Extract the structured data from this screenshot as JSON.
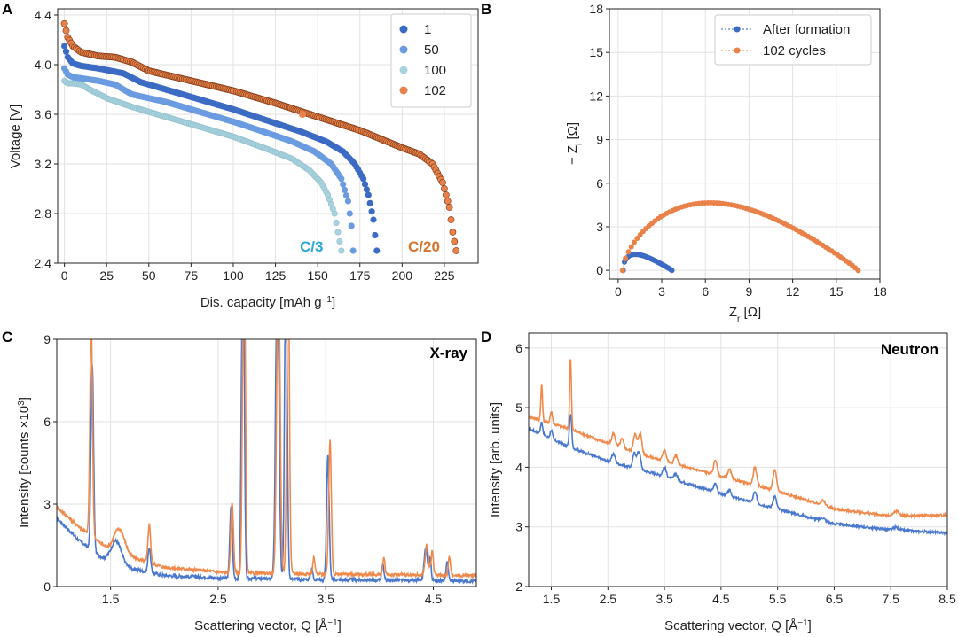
{
  "colors": {
    "c1": "#3c6bc4",
    "c50": "#6b9be0",
    "c100": "#a9d3de",
    "c102": "#e8824a",
    "dark": "#7a3512",
    "blue_line": "#4a78cf",
    "orange_line": "#ef8a4c",
    "c3_label": "#2aa7d6",
    "c20_label": "#d5742f"
  },
  "chart_data": [
    {
      "id": "A",
      "type": "scatter",
      "panel_label": "A",
      "xlabel": "Dis. capacity [mAh g",
      "xlabel_sup": "−1",
      "xlabel_end": "]",
      "ylabel": "Voltage [V]",
      "xlim": [
        -4,
        245
      ],
      "ylim": [
        2.4,
        4.45
      ],
      "xticks": [
        0,
        25,
        50,
        75,
        100,
        125,
        150,
        175,
        200,
        225
      ],
      "xtick_labels": [
        "0",
        "25",
        "50",
        "75",
        "100",
        "125",
        "150",
        "175",
        "200",
        "225"
      ],
      "yticks": [
        2.4,
        2.8,
        3.2,
        3.6,
        4.0,
        4.4
      ],
      "ytick_labels": [
        "2.4",
        "2.8",
        "3.2",
        "3.6",
        "4.0",
        "4.4"
      ],
      "legend": {
        "placement": "top-right",
        "entries": [
          "1",
          "50",
          "100",
          "102"
        ]
      },
      "annotations": [
        "C/3",
        "C/20"
      ],
      "series": [
        {
          "name": "1",
          "color_key": "c1",
          "points": [
            [
              0,
              4.15
            ],
            [
              2,
              4.06
            ],
            [
              5,
              4.01
            ],
            [
              10,
              3.99
            ],
            [
              20,
              3.97
            ],
            [
              35,
              3.93
            ],
            [
              45,
              3.86
            ],
            [
              60,
              3.8
            ],
            [
              80,
              3.72
            ],
            [
              100,
              3.64
            ],
            [
              120,
              3.55
            ],
            [
              140,
              3.46
            ],
            [
              155,
              3.38
            ],
            [
              165,
              3.3
            ],
            [
              172,
              3.2
            ],
            [
              177,
              3.08
            ],
            [
              180,
              2.95
            ],
            [
              183,
              2.75
            ],
            [
              185,
              2.5
            ]
          ]
        },
        {
          "name": "50",
          "color_key": "c50",
          "points": [
            [
              0,
              3.97
            ],
            [
              2,
              3.92
            ],
            [
              5,
              3.9
            ],
            [
              10,
              3.89
            ],
            [
              20,
              3.87
            ],
            [
              30,
              3.84
            ],
            [
              40,
              3.76
            ],
            [
              60,
              3.7
            ],
            [
              80,
              3.62
            ],
            [
              100,
              3.54
            ],
            [
              120,
              3.45
            ],
            [
              135,
              3.38
            ],
            [
              148,
              3.3
            ],
            [
              158,
              3.2
            ],
            [
              164,
              3.08
            ],
            [
              168,
              2.9
            ],
            [
              170,
              2.7
            ],
            [
              171,
              2.5
            ]
          ]
        },
        {
          "name": "100",
          "color_key": "c100",
          "points": [
            [
              0,
              3.87
            ],
            [
              2,
              3.85
            ],
            [
              5,
              3.85
            ],
            [
              10,
              3.84
            ],
            [
              15,
              3.8
            ],
            [
              25,
              3.73
            ],
            [
              40,
              3.66
            ],
            [
              60,
              3.58
            ],
            [
              80,
              3.5
            ],
            [
              100,
              3.42
            ],
            [
              120,
              3.32
            ],
            [
              135,
              3.24
            ],
            [
              145,
              3.15
            ],
            [
              152,
              3.05
            ],
            [
              156,
              2.95
            ],
            [
              160,
              2.8
            ],
            [
              162,
              2.65
            ],
            [
              164,
              2.5
            ]
          ]
        },
        {
          "name": "102",
          "color_key": "c102",
          "points": [
            [
              0,
              4.33
            ],
            [
              2,
              4.22
            ],
            [
              5,
              4.15
            ],
            [
              10,
              4.1
            ],
            [
              20,
              4.07
            ],
            [
              30,
              4.06
            ],
            [
              40,
              4.02
            ],
            [
              50,
              3.95
            ],
            [
              75,
              3.87
            ],
            [
              100,
              3.79
            ],
            [
              125,
              3.69
            ],
            [
              150,
              3.58
            ],
            [
              175,
              3.47
            ],
            [
              200,
              3.33
            ],
            [
              210,
              3.28
            ],
            [
              218,
              3.2
            ],
            [
              224,
              3.05
            ],
            [
              228,
              2.85
            ],
            [
              230,
              2.65
            ],
            [
              232,
              2.5
            ]
          ]
        }
      ],
      "extra_points": [
        [
          141,
          3.6
        ]
      ]
    },
    {
      "id": "B",
      "type": "scatter",
      "panel_label": "B",
      "xlabel": "Z",
      "xlabel_sub": "r",
      "xlabel_end": " [Ω]",
      "ylabel": "− Z",
      "ylabel_sub": "i",
      "ylabel_end": " [Ω]",
      "xlim": [
        -0.6,
        18
      ],
      "ylim": [
        -0.6,
        18
      ],
      "xticks": [
        0,
        3,
        6,
        9,
        12,
        15,
        18
      ],
      "xtick_labels": [
        "0",
        "3",
        "6",
        "9",
        "12",
        "15",
        "18"
      ],
      "yticks": [
        0,
        3,
        6,
        9,
        12,
        15,
        18
      ],
      "ytick_labels": [
        "0",
        "3",
        "6",
        "9",
        "12",
        "15",
        "18"
      ],
      "legend": {
        "placement": "top-right",
        "entries": [
          "After formation",
          "102 cycles"
        ]
      },
      "series": [
        {
          "name": "After formation",
          "color_key": "c1",
          "arc": [
            0.35,
            3.7,
            1.1
          ]
        },
        {
          "name": "102 cycles",
          "color_key": "c102",
          "arc": [
            0.3,
            16.5,
            4.65
          ]
        }
      ]
    },
    {
      "id": "C",
      "type": "line",
      "panel_label": "C",
      "title": "X-ray",
      "xlabel": "Scattering vector, Q [Å",
      "xlabel_sup": "−1",
      "xlabel_end": "]",
      "ylabel": "Intensity [counts ×10",
      "ylabel_sup": "3",
      "ylabel_end": "]",
      "xlim": [
        1.0,
        4.9
      ],
      "ylim": [
        0,
        9
      ],
      "xticks": [
        1.5,
        2.5,
        3.5,
        4.5
      ],
      "xtick_labels": [
        "1.5",
        "2.5",
        "3.5",
        "4.5"
      ],
      "yticks": [
        0,
        3,
        6,
        9
      ],
      "ytick_labels": [
        "0",
        "3",
        "6",
        "9"
      ],
      "series": [
        {
          "name": "after formation",
          "color_key": "blue_line",
          "background": [
            [
              1.0,
              2.5
            ],
            [
              1.2,
              1.7
            ],
            [
              1.5,
              0.8
            ],
            [
              2.0,
              0.4
            ],
            [
              2.6,
              0.3
            ],
            [
              3.5,
              0.25
            ],
            [
              4.9,
              0.2
            ]
          ],
          "peaks": [
            [
              1.33,
              6.8,
              0.012
            ],
            [
              1.55,
              0.9,
              0.05
            ],
            [
              1.86,
              0.9,
              0.012
            ],
            [
              2.62,
              2.6,
              0.012
            ],
            [
              2.73,
              14,
              0.012
            ],
            [
              3.05,
              12,
              0.015
            ],
            [
              3.13,
              12,
              0.012
            ],
            [
              3.37,
              0.4,
              0.01
            ],
            [
              3.52,
              4.5,
              0.012
            ],
            [
              4.03,
              0.6,
              0.01
            ],
            [
              4.43,
              1.2,
              0.015
            ],
            [
              4.47,
              0.8,
              0.01
            ],
            [
              4.63,
              0.7,
              0.01
            ]
          ]
        },
        {
          "name": "102 cycles",
          "color_key": "orange_line",
          "background": [
            [
              1.0,
              2.9
            ],
            [
              1.2,
              2.2
            ],
            [
              1.5,
              1.3
            ],
            [
              2.0,
              0.7
            ],
            [
              2.6,
              0.5
            ],
            [
              3.5,
              0.45
            ],
            [
              4.9,
              0.4
            ]
          ],
          "peaks": [
            [
              1.32,
              7.8,
              0.012
            ],
            [
              1.58,
              0.9,
              0.05
            ],
            [
              1.86,
              1.4,
              0.012
            ],
            [
              2.63,
              2.6,
              0.012
            ],
            [
              2.74,
              14,
              0.012
            ],
            [
              3.06,
              12,
              0.015
            ],
            [
              3.15,
              12,
              0.012
            ],
            [
              3.39,
              0.6,
              0.01
            ],
            [
              3.54,
              4.9,
              0.012
            ],
            [
              4.04,
              0.6,
              0.01
            ],
            [
              4.44,
              1.1,
              0.015
            ],
            [
              4.49,
              0.9,
              0.01
            ],
            [
              4.65,
              0.7,
              0.01
            ]
          ]
        }
      ]
    },
    {
      "id": "D",
      "type": "line",
      "panel_label": "D",
      "title": "Neutron",
      "xlabel": "Scattering vector, Q [Å",
      "xlabel_sup": "−1",
      "xlabel_end": "]",
      "ylabel": "Intensity [arb. units]",
      "xlim": [
        1.1,
        8.5
      ],
      "ylim": [
        2,
        6.25
      ],
      "xticks": [
        1.5,
        2.5,
        3.5,
        4.5,
        5.5,
        6.5,
        7.5,
        8.5
      ],
      "xtick_labels": [
        "1.5",
        "2.5",
        "3.5",
        "4.5",
        "5.5",
        "6.5",
        "7.5",
        "8.5"
      ],
      "yticks": [
        2,
        3,
        4,
        5,
        6
      ],
      "ytick_labels": [
        "2",
        "3",
        "4",
        "5",
        "6"
      ],
      "series": [
        {
          "name": "after formation",
          "color_key": "blue_line",
          "background": [
            [
              1.1,
              4.65
            ],
            [
              1.8,
              4.35
            ],
            [
              2.5,
              4.1
            ],
            [
              3.5,
              3.85
            ],
            [
              4.5,
              3.55
            ],
            [
              5.5,
              3.3
            ],
            [
              6.5,
              3.05
            ],
            [
              7.5,
              2.95
            ],
            [
              8.5,
              2.9
            ]
          ],
          "peaks": [
            [
              1.33,
              0.2,
              0.02
            ],
            [
              1.5,
              0.15,
              0.02
            ],
            [
              1.84,
              0.55,
              0.02
            ],
            [
              2.6,
              0.15,
              0.03
            ],
            [
              2.97,
              0.25,
              0.03
            ],
            [
              3.05,
              0.3,
              0.03
            ],
            [
              3.5,
              0.15,
              0.03
            ],
            [
              3.7,
              0.1,
              0.03
            ],
            [
              4.4,
              0.15,
              0.03
            ],
            [
              4.65,
              0.1,
              0.03
            ],
            [
              5.1,
              0.18,
              0.03
            ],
            [
              5.45,
              0.2,
              0.03
            ],
            [
              6.3,
              0.05,
              0.04
            ],
            [
              7.6,
              0.05,
              0.05
            ]
          ]
        },
        {
          "name": "102 cycles",
          "color_key": "orange_line",
          "background": [
            [
              1.1,
              4.85
            ],
            [
              1.8,
              4.65
            ],
            [
              2.5,
              4.4
            ],
            [
              3.5,
              4.1
            ],
            [
              4.5,
              3.85
            ],
            [
              5.5,
              3.6
            ],
            [
              6.5,
              3.3
            ],
            [
              7.5,
              3.18
            ],
            [
              8.5,
              3.2
            ]
          ],
          "peaks": [
            [
              1.33,
              0.6,
              0.015
            ],
            [
              1.5,
              0.2,
              0.02
            ],
            [
              1.84,
              1.2,
              0.015
            ],
            [
              2.6,
              0.2,
              0.03
            ],
            [
              2.75,
              0.15,
              0.03
            ],
            [
              2.98,
              0.3,
              0.03
            ],
            [
              3.07,
              0.35,
              0.03
            ],
            [
              3.5,
              0.2,
              0.03
            ],
            [
              3.7,
              0.15,
              0.03
            ],
            [
              4.4,
              0.25,
              0.03
            ],
            [
              4.65,
              0.15,
              0.03
            ],
            [
              5.1,
              0.3,
              0.03
            ],
            [
              5.45,
              0.35,
              0.03
            ],
            [
              6.3,
              0.08,
              0.04
            ],
            [
              7.6,
              0.08,
              0.05
            ]
          ]
        }
      ]
    }
  ]
}
